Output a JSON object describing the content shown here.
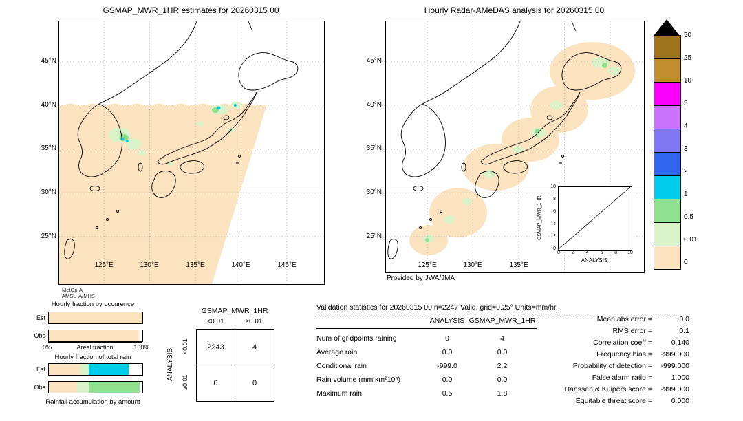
{
  "palette": {
    "peach": "#fce3c0",
    "pale_green": "#d9f2c7",
    "light_green": "#8fe18f",
    "cyan": "#00cdec",
    "white": "#ffffff"
  },
  "left_map": {
    "title": "GSMAP_MWR_1HR estimates for 20260315 00",
    "lat_labels": [
      "45°N",
      "40°N",
      "35°N",
      "30°N",
      "25°N"
    ],
    "lon_labels": [
      "125°E",
      "130°E",
      "135°E",
      "140°E",
      "145°E"
    ]
  },
  "right_map": {
    "title": "Hourly Radar-AMeDAS analysis for 20260315 00",
    "lat_labels": [
      "45°N",
      "40°N",
      "35°N",
      "30°N",
      "25°N"
    ],
    "lon_labels": [
      "125°E",
      "130°E",
      "135°E"
    ],
    "credit": "Provided by JWA/JMA",
    "inset": {
      "ylabel": "GSMAP_MWR_1HR",
      "xlabel": "ANALYSIS",
      "x_ticks": [
        "0",
        "2",
        "4",
        "6",
        "8",
        "10"
      ],
      "y_ticks": [
        "10",
        "8",
        "6",
        "4",
        "2",
        "0"
      ]
    }
  },
  "colorbar": {
    "labels_top_to_bottom": [
      "50",
      "25",
      "10",
      "5",
      "4",
      "3",
      "2",
      "1",
      "0.5",
      "0.01",
      "0"
    ],
    "cell_colors_top_to_bottom": [
      "#a0741c",
      "#bf8d2e",
      "#fa00fa",
      "#c873fa",
      "#8277f2",
      "#2e64ee",
      "#00cdec",
      "#8fe18f",
      "#d9f2c7",
      "#fce3c0"
    ]
  },
  "fraction_charts": {
    "satellite": "MetOp-A",
    "sensor": "AMSU-A/MHS",
    "occurrence_title": "Hourly fraction by occurence",
    "total_title": "Hourly fraction of total rain",
    "footer_label": "Rainfall accumulation by amount",
    "row_labels": [
      "Est",
      "Obs"
    ],
    "axis": {
      "min": "0%",
      "label": "Areal fraction",
      "max": "100%"
    },
    "occurrence_bars": {
      "est": [
        {
          "color": "#fce3c0",
          "pct": 100
        }
      ],
      "obs": [
        {
          "color": "#fce3c0",
          "pct": 96
        },
        {
          "color": "#ffffff",
          "pct": 4
        }
      ]
    },
    "total_bars": {
      "est": [
        {
          "color": "#fce3c0",
          "pct": 33
        },
        {
          "color": "#d9f2c7",
          "pct": 10
        },
        {
          "color": "#00cdec",
          "pct": 42
        },
        {
          "color": "#ffffff",
          "pct": 15
        }
      ],
      "obs": [
        {
          "color": "#fce3c0",
          "pct": 30
        },
        {
          "color": "#d9f2c7",
          "pct": 13
        },
        {
          "color": "#8fe18f",
          "pct": 54
        },
        {
          "color": "#ffffff",
          "pct": 3
        }
      ]
    }
  },
  "contingency": {
    "title": "GSMAP_MWR_1HR",
    "col_labels": [
      "<0.01",
      "≥0.01"
    ],
    "row_axis": "ANALYSIS",
    "row_labels": [
      "<0.01",
      "≥0.01"
    ],
    "cells": [
      [
        "2243",
        "4"
      ],
      [
        "0",
        "0"
      ]
    ]
  },
  "stats": {
    "title": "Validation statistics for 20260315 00 n=2247 Valid. grid=0.25° Units=mm/hr.",
    "col_headers": [
      "ANALYSIS",
      "GSMAP_MWR_1HR"
    ],
    "rows": [
      {
        "label": "Num of gridpoints raining",
        "analysis": "0",
        "gsmap": "4"
      },
      {
        "label": "Average rain",
        "analysis": "0.0",
        "gsmap": "0.0"
      },
      {
        "label": "Conditional rain",
        "analysis": "-999.0",
        "gsmap": "2.2"
      },
      {
        "label": "Rain volume (mm km²10⁶)",
        "analysis": "0.0",
        "gsmap": "0.0"
      },
      {
        "label": "Maximum rain",
        "analysis": "0.5",
        "gsmap": "1.8"
      }
    ],
    "extra": [
      {
        "label": "Mean abs error",
        "value": "0.0"
      },
      {
        "label": "RMS error",
        "value": "0.1"
      },
      {
        "label": "Correlation coeff",
        "value": "0.140"
      },
      {
        "label": "Frequency bias",
        "value": "-999.000"
      },
      {
        "label": "Probability of detection",
        "value": "-999.000"
      },
      {
        "label": "False alarm ratio",
        "value": "1.000"
      },
      {
        "label": "Hanssen & Kuipers score",
        "value": "-999.000"
      },
      {
        "label": "Equitable threat score",
        "value": "0.000"
      }
    ]
  },
  "chart_data": [
    {
      "type": "heatmap",
      "title": "GSMAP_MWR_1HR estimates for 20260315 00",
      "x_ticks": [
        "125°E",
        "130°E",
        "135°E",
        "140°E",
        "145°E"
      ],
      "y_ticks": [
        "45°N",
        "40°N",
        "35°N",
        "30°N",
        "25°N"
      ],
      "units": "mm/hr",
      "description": "Satellite swath south of 40°N shaded 0-0.01 mm/hr with scattered cells 0.01-2 mm/hr near Korea and western Japan"
    },
    {
      "type": "heatmap",
      "title": "Hourly Radar-AMeDAS analysis for 20260315 00",
      "x_ticks": [
        "125°E",
        "130°E",
        "135°E"
      ],
      "y_ticks": [
        "45°N",
        "40°N",
        "35°N",
        "30°N",
        "25°N"
      ],
      "units": "mm/hr",
      "description": "Radar coverage along the Japanese archipelago shaded 0-0.01 mm/hr with scattered cells 0.01-1 mm/hr"
    },
    {
      "type": "scatter",
      "title": "GSMAP_MWR_1HR vs ANALYSIS inset",
      "xlabel": "ANALYSIS",
      "ylabel": "GSMAP_MWR_1HR",
      "xlim": [
        0,
        10
      ],
      "ylim": [
        0,
        10
      ],
      "points": [],
      "reference_line": "y = x"
    },
    {
      "type": "bar",
      "title": "Hourly fraction by occurence",
      "categories": [
        "Est",
        "Obs"
      ],
      "series": [
        {
          "name": "0-0.01 mm/hr",
          "values": [
            100,
            96
          ]
        }
      ],
      "xlabel": "Areal fraction",
      "xlim": [
        0,
        100
      ]
    },
    {
      "type": "bar",
      "title": "Hourly fraction of total rain",
      "categories": [
        "Est",
        "Obs"
      ],
      "series": [
        {
          "name": "0-0.01 mm/hr",
          "values": [
            33,
            30
          ]
        },
        {
          "name": "0.01-0.5 mm/hr",
          "values": [
            10,
            13
          ]
        },
        {
          "name": "1-2 mm/hr",
          "values": [
            42,
            0
          ]
        },
        {
          "name": "0.5-1 mm/hr",
          "values": [
            0,
            54
          ]
        }
      ],
      "footer": "Rainfall accumulation by amount"
    },
    {
      "type": "table",
      "title": "GSMAP_MWR_1HR vs ANALYSIS contingency",
      "columns": [
        "<0.01",
        "≥0.01"
      ],
      "rows": [
        [
          "2243",
          "4"
        ],
        [
          "0",
          "0"
        ]
      ]
    },
    {
      "type": "table",
      "title": "Validation statistics for 20260315 00 n=2247 Valid. grid=0.25° Units=mm/hr.",
      "columns": [
        "",
        "ANALYSIS",
        "GSMAP_MWR_1HR"
      ],
      "rows": [
        [
          "Num of gridpoints raining",
          "0",
          "4"
        ],
        [
          "Average rain",
          "0.0",
          "0.0"
        ],
        [
          "Conditional rain",
          "-999.0",
          "2.2"
        ],
        [
          "Rain volume (mm km²10⁶)",
          "0.0",
          "0.0"
        ],
        [
          "Maximum rain",
          "0.5",
          "1.8"
        ]
      ]
    },
    {
      "type": "table",
      "title": "Summary scores",
      "rows": [
        [
          "Mean abs error",
          "0.0"
        ],
        [
          "RMS error",
          "0.1"
        ],
        [
          "Correlation coeff",
          "0.140"
        ],
        [
          "Frequency bias",
          "-999.000"
        ],
        [
          "Probability of detection",
          "-999.000"
        ],
        [
          "False alarm ratio",
          "1.000"
        ],
        [
          "Hanssen & Kuipers score",
          "-999.000"
        ],
        [
          "Equitable threat score",
          "0.000"
        ]
      ]
    },
    {
      "type": "colorbar",
      "units": "mm/hr",
      "levels": [
        "0",
        "0.01",
        "0.5",
        "1",
        "2",
        "3",
        "4",
        "5",
        "10",
        "25",
        "50"
      ]
    }
  ]
}
